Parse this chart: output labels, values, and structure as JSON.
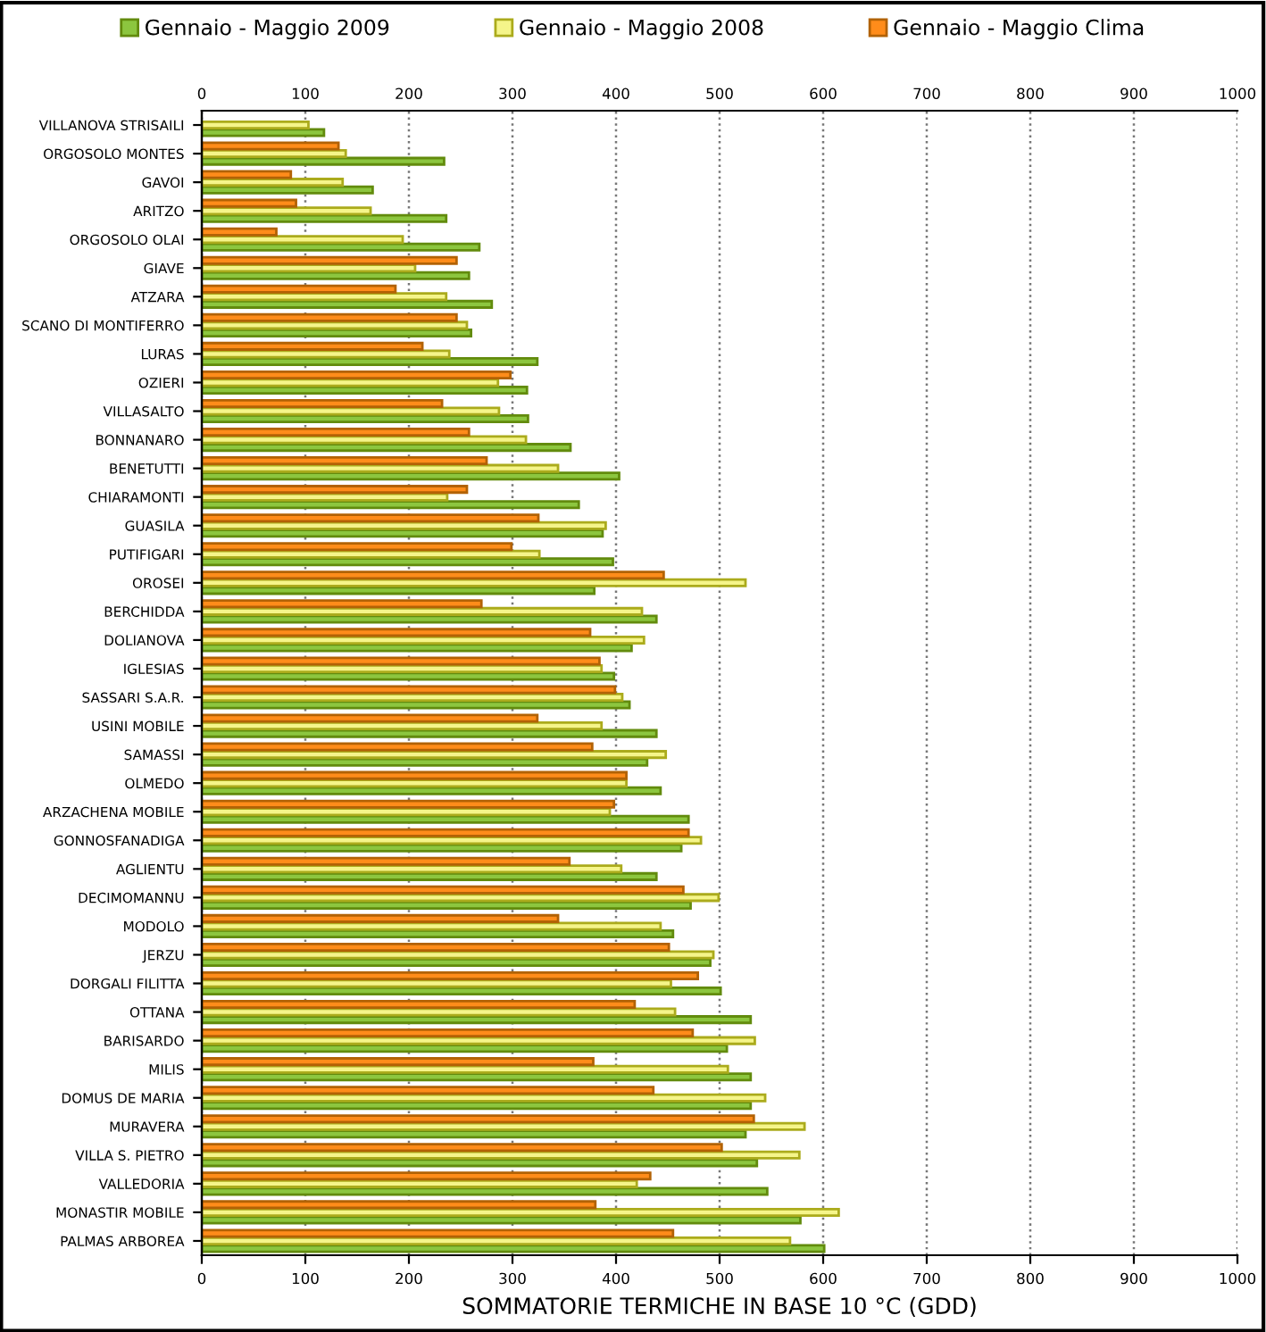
{
  "chart_data": {
    "type": "bar",
    "orientation": "horizontal",
    "xlabel": "SOMMATORIE TERMICHE IN BASE 10 °C (GDD)",
    "categories": [
      "VILLANOVA STRISAILI",
      "ORGOSOLO MONTES",
      "GAVOI",
      "ARITZO",
      "ORGOSOLO OLAI",
      "GIAVE",
      "ATZARA",
      "SCANO DI MONTIFERRO",
      "LURAS",
      "OZIERI",
      "VILLASALTO",
      "BONNANARO",
      "BENETUTTI",
      "CHIARAMONTI",
      "GUASILA",
      "PUTIFIGARI",
      "OROSEI",
      "BERCHIDDA",
      "DOLIANOVA",
      "IGLESIAS",
      "SASSARI S.A.R.",
      "USINI MOBILE",
      "SAMASSI",
      "OLMEDO",
      "ARZACHENA MOBILE",
      "GONNOSFANADIGA",
      "AGLIENTU",
      "DECIMOMANNU",
      "MODOLO",
      "JERZU",
      "DORGALI FILITTA",
      "OTTANA",
      "BARISARDO",
      "MILIS",
      "DOMUS DE MARIA",
      "MURAVERA",
      "VILLA S. PIETRO",
      "VALLEDORIA",
      "MONASTIR MOBILE",
      "PALMAS ARBOREA"
    ],
    "series": [
      {
        "name": "Gennaio - Maggio 2009",
        "color": "#8cc63f",
        "values": [
          118,
          234,
          165,
          236,
          268,
          258,
          280,
          260,
          324,
          314,
          315,
          356,
          403,
          364,
          387,
          397,
          379,
          439,
          415,
          398,
          413,
          439,
          430,
          443,
          470,
          463,
          439,
          472,
          455,
          491,
          501,
          530,
          507,
          530,
          530,
          525,
          536,
          546,
          578,
          601
        ]
      },
      {
        "name": "Gennaio - Maggio 2008",
        "color": "#f5f58a",
        "values": [
          103,
          139,
          136,
          163,
          194,
          206,
          236,
          256,
          239,
          286,
          287,
          313,
          344,
          237,
          390,
          326,
          525,
          425,
          427,
          386,
          406,
          386,
          448,
          410,
          394,
          482,
          405,
          499,
          443,
          494,
          453,
          457,
          534,
          508,
          544,
          582,
          577,
          420,
          615,
          568
        ]
      },
      {
        "name": "Gennaio - Maggio Clima",
        "color": "#ff8c1a",
        "values": [
          null,
          132,
          86,
          91,
          72,
          246,
          187,
          246,
          213,
          298,
          232,
          258,
          275,
          256,
          325,
          299,
          446,
          270,
          375,
          384,
          399,
          324,
          377,
          410,
          398,
          470,
          355,
          465,
          344,
          451,
          479,
          418,
          474,
          378,
          436,
          533,
          502,
          433,
          380,
          455
        ]
      }
    ],
    "xlim": [
      0,
      1000
    ],
    "xticks": [
      0,
      100,
      200,
      300,
      400,
      500,
      600,
      700,
      800,
      900,
      1000
    ],
    "x2lim": [
      0,
      1000
    ],
    "x2ticks": [
      0,
      100,
      200,
      300,
      400,
      500,
      600,
      700,
      800,
      900,
      1000
    ],
    "grid": "x",
    "legend": "top"
  }
}
